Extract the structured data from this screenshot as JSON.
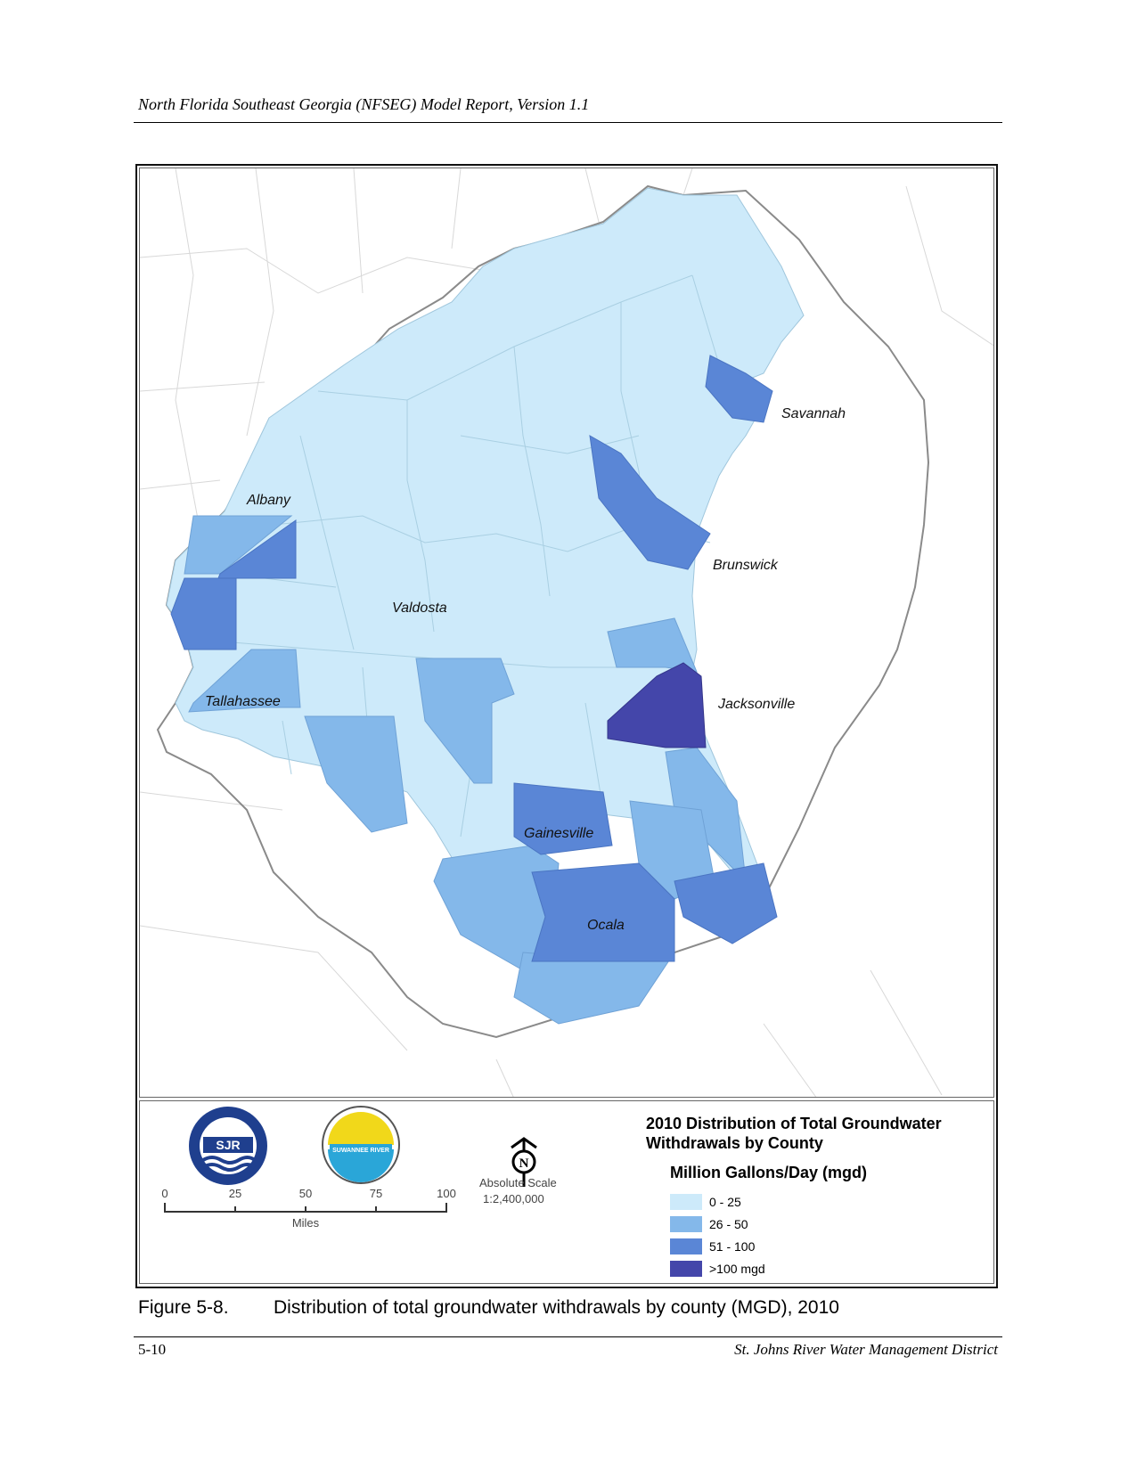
{
  "header": {
    "running_title": "North Florida Southeast Georgia (NFSEG) Model Report, Version 1.1"
  },
  "map": {
    "cities": [
      "Savannah",
      "Albany",
      "Brunswick",
      "Valdosta",
      "Jacksonville",
      "Tallahassee",
      "Gainesville",
      "Ocala"
    ],
    "colors": {
      "class_0_25": "#cdeafa",
      "class_26_50": "#84b8ea",
      "class_51_100": "#5a86d6",
      "class_gt100": "#4446aa"
    }
  },
  "legend": {
    "title": "2010 Distribution of Total Groundwater Withdrawals by County",
    "subtitle": "Million Gallons/Day (mgd)",
    "classes": [
      {
        "label": "0 - 25",
        "color": "#cdeafa"
      },
      {
        "label": "26 - 50",
        "color": "#84b8ea"
      },
      {
        "label": "51 - 100",
        "color": "#5a86d6"
      },
      {
        "label": ">100 mgd",
        "color": "#4446aa"
      }
    ],
    "scale_ticks": [
      "0",
      "25",
      "50",
      "75",
      "100"
    ],
    "scale_unit": "Miles",
    "absolute_scale_label": "Absolute Scale",
    "absolute_scale_value": "1:2,400,000",
    "north_letter": "N",
    "logo_sjr": "SJR",
    "logo_srwmd": "SUWANNEE RIVER"
  },
  "caption": {
    "number": "Figure 5-8.",
    "text": "Distribution of total groundwater withdrawals by county (MGD), 2010"
  },
  "footer": {
    "page": "5-10",
    "org": "St. Johns River Water Management District"
  }
}
